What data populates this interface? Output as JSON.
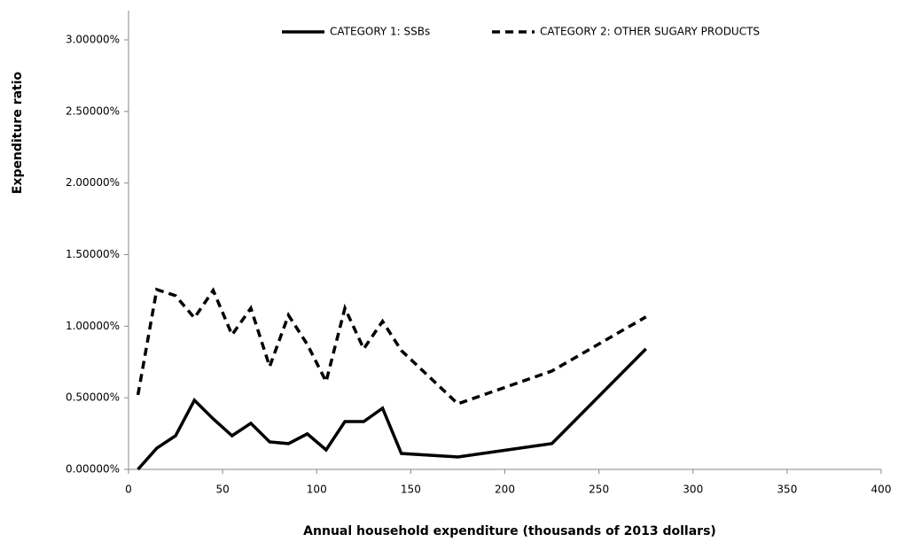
{
  "chart_data": {
    "type": "line",
    "x_label": "Annual household expenditure (thousands of 2013 dollars)",
    "y_label": "Expenditure ratio",
    "x": [
      5,
      15,
      25,
      35,
      45,
      55,
      65,
      75,
      85,
      95,
      105,
      115,
      125,
      135,
      145,
      175,
      225,
      275
    ],
    "series": [
      {
        "name": "CATEGORY 1: SSBs",
        "color": "#000000",
        "dash": "solid",
        "values": [
          0.0,
          0.148,
          0.235,
          0.483,
          0.353,
          0.235,
          0.322,
          0.192,
          0.18,
          0.248,
          0.136,
          0.334,
          0.334,
          0.427,
          0.111,
          0.087,
          0.18,
          0.842
        ]
      },
      {
        "name": "CATEGORY 2: OTHER SUGARY PRODUCTS",
        "color": "#000000",
        "dash": "dashed",
        "values": [
          0.52,
          1.256,
          1.213,
          1.058,
          1.25,
          0.94,
          1.126,
          0.718,
          1.077,
          0.873,
          0.613,
          1.126,
          0.842,
          1.034,
          0.83,
          0.458,
          0.687,
          1.065
        ]
      }
    ],
    "xlim": [
      0,
      400
    ],
    "xticks": [
      0,
      50,
      100,
      150,
      200,
      250,
      300,
      350,
      400
    ],
    "ylim": [
      0,
      3
    ],
    "yticks": [
      {
        "value": 0,
        "label": "0.00000%"
      },
      {
        "value": 0.5,
        "label": "0.50000%"
      },
      {
        "value": 1,
        "label": "1.00000%"
      },
      {
        "value": 1.5,
        "label": "1.50000%"
      },
      {
        "value": 2,
        "label": "2.00000%"
      },
      {
        "value": 2.5,
        "label": "2.50000%"
      },
      {
        "value": 3,
        "label": "3.00000%"
      }
    ],
    "grid": false,
    "legend": "top"
  }
}
